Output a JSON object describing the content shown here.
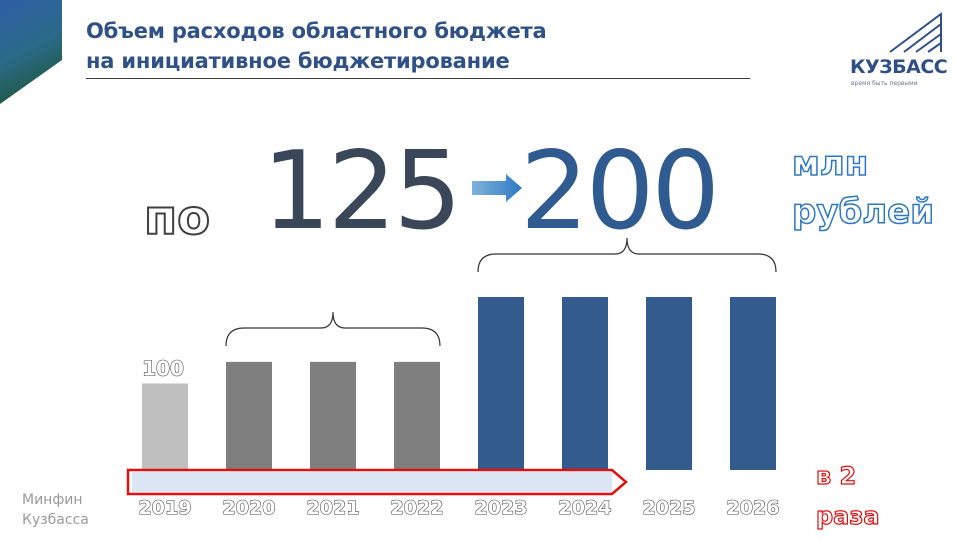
{
  "header": {
    "title_line1": "Объем расходов областного бюджета",
    "title_line2": "на инициативное бюджетирование"
  },
  "logo": {
    "name": "КУЗБАСС",
    "tagline": "время быть первыми",
    "icon": "kuzbass-logo-icon"
  },
  "headline": {
    "prefix": "по",
    "from_value": "125",
    "to_value": "200",
    "unit_line1": "млн",
    "unit_line2": "рублей",
    "arrow_icon": "right-arrow-icon"
  },
  "badge": {
    "line1": "в 2",
    "line2": "раза"
  },
  "source": {
    "line1": "Минфин",
    "line2": "Кузбасса"
  },
  "colors": {
    "bar_2019": "#bfbfbf",
    "bar_2020_2022": "#7f7f7f",
    "bar_2023_2026": "#335b8e",
    "title": "#2f5185",
    "highlight": "#e01010"
  },
  "chart_data": {
    "type": "bar",
    "categories": [
      "2019",
      "2020",
      "2021",
      "2022",
      "2023",
      "2024",
      "2025",
      "2026"
    ],
    "values": [
      100,
      125,
      125,
      125,
      200,
      200,
      200,
      200
    ],
    "data_labels": [
      "100",
      "",
      "",
      "",
      "",
      "",
      "",
      ""
    ],
    "ylim": [
      0,
      230
    ],
    "grid": false,
    "legend": "none"
  }
}
